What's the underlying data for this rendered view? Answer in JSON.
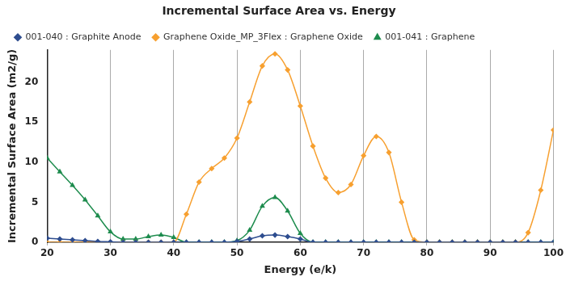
{
  "chart_data": {
    "type": "line",
    "title": "Incremental Surface Area vs. Energy",
    "x_label": "Energy (e/k)",
    "y_label": "Incremental Surface Area (m2/g)",
    "x": [
      20,
      22,
      24,
      26,
      28,
      30,
      32,
      34,
      36,
      38,
      40,
      42,
      44,
      46,
      48,
      50,
      52,
      54,
      56,
      58,
      60,
      62,
      64,
      66,
      68,
      70,
      72,
      74,
      76,
      78,
      80,
      82,
      84,
      86,
      88,
      90,
      92,
      94,
      96,
      98,
      100
    ],
    "series": [
      {
        "name": "001-040 : Graphite Anode",
        "color": "#2e4d8f",
        "marker": "diamond",
        "values": [
          0.5,
          0.4,
          0.3,
          0.2,
          0.1,
          0.05,
          0,
          0,
          0,
          0,
          0,
          0,
          0,
          0,
          0,
          0.1,
          0.4,
          0.8,
          0.9,
          0.7,
          0.4,
          0,
          0,
          0,
          0,
          0,
          0,
          0,
          0,
          0,
          0,
          0,
          0,
          0,
          0,
          0,
          0,
          0,
          0,
          0,
          0
        ]
      },
      {
        "name": "Graphene Oxide_MP_3Flex : Graphene Oxide",
        "color": "#f7a030",
        "marker": "diamond",
        "values": [
          0,
          0,
          0,
          0,
          0,
          0,
          0,
          0,
          0,
          0,
          0,
          3.5,
          7.5,
          9.2,
          10.5,
          13,
          17.5,
          22,
          23.5,
          21.5,
          17,
          12,
          8,
          6.2,
          7.2,
          10.8,
          13.2,
          11.2,
          5,
          0.3,
          0,
          0,
          0,
          0,
          0,
          0,
          0,
          0,
          1.2,
          6.5,
          14
        ]
      },
      {
        "name": "001-041 : Graphene",
        "color": "#1e8c4e",
        "marker": "triangle",
        "values": [
          10.5,
          8.8,
          7.1,
          5.3,
          3.3,
          1.3,
          0.4,
          0.4,
          0.7,
          0.9,
          0.6,
          0,
          0,
          0,
          0,
          0.2,
          1.5,
          4.5,
          5.6,
          3.9,
          1.1,
          0,
          0,
          0,
          0,
          0,
          0,
          0,
          0,
          0,
          0,
          0,
          0,
          0,
          0,
          0,
          0,
          0,
          0,
          0,
          0
        ]
      }
    ],
    "xlim": [
      20,
      100
    ],
    "xticks": [
      20,
      30,
      40,
      50,
      60,
      70,
      80,
      90,
      100
    ],
    "ylim": [
      0,
      24
    ],
    "yticks": [
      0,
      5,
      10,
      15,
      20
    ],
    "grid": true,
    "legend": "top"
  }
}
